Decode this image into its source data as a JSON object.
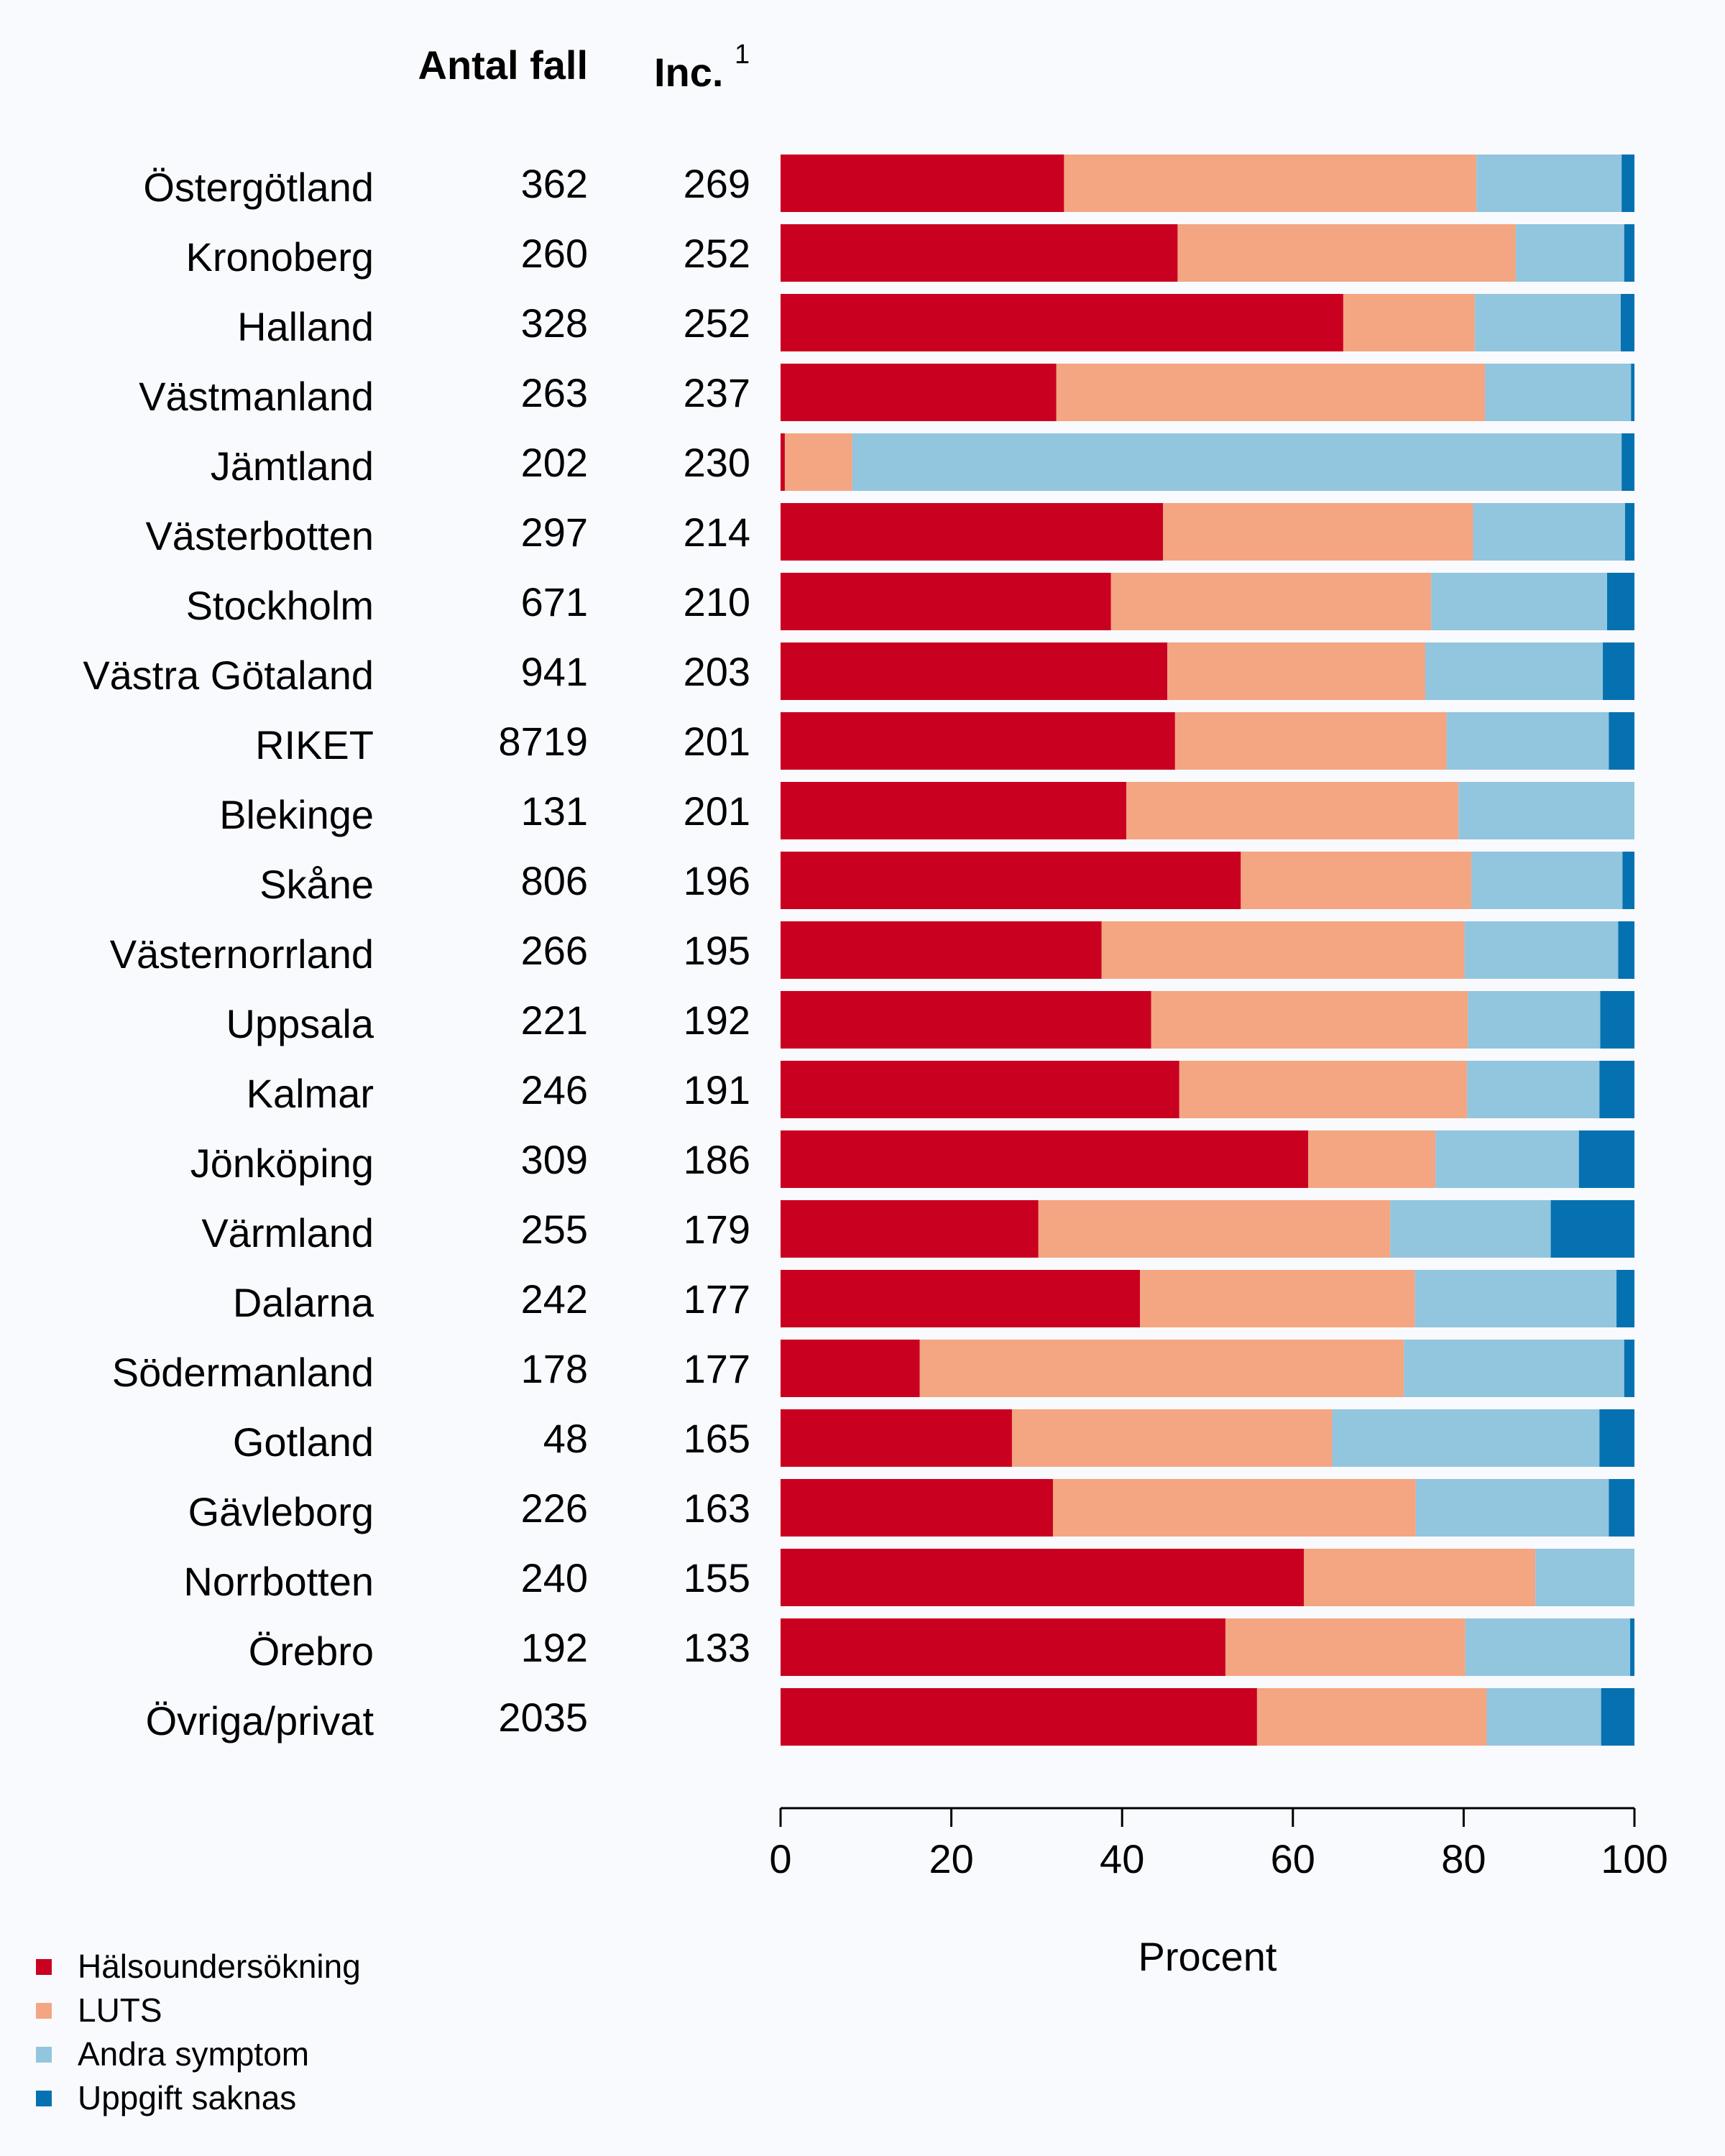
{
  "chart_data": {
    "type": "bar",
    "orientation": "horizontal",
    "stacked": true,
    "headers": {
      "count": "Antal fall",
      "incidence": "Inc.",
      "incidence_sup": "1"
    },
    "xlabel": "Procent",
    "xlim": [
      0,
      100
    ],
    "xticks": [
      0,
      20,
      40,
      60,
      80,
      100
    ],
    "grid": false,
    "legend_position": "bottom-left",
    "series": [
      {
        "name": "Hälsoundersökning",
        "color": "#ca0020"
      },
      {
        "name": "LUTS",
        "color": "#f4a582"
      },
      {
        "name": "Andra symptom",
        "color": "#92c5de"
      },
      {
        "name": "Uppgift saknas",
        "color": "#0571b0"
      }
    ],
    "rows": [
      {
        "region": "Östergötland",
        "count": "362",
        "inc": "269",
        "values": [
          33.2,
          48.3,
          17.0,
          1.5
        ]
      },
      {
        "region": "Kronoberg",
        "count": "260",
        "inc": "252",
        "values": [
          46.5,
          39.6,
          12.7,
          1.2
        ]
      },
      {
        "region": "Halland",
        "count": "328",
        "inc": "252",
        "values": [
          65.9,
          15.4,
          17.1,
          1.6
        ]
      },
      {
        "region": "Västmanland",
        "count": "263",
        "inc": "237",
        "values": [
          32.3,
          50.2,
          17.1,
          0.4
        ]
      },
      {
        "region": "Jämtland",
        "count": "202",
        "inc": "230",
        "values": [
          0.5,
          7.9,
          90.1,
          1.5
        ]
      },
      {
        "region": "Västerbotten",
        "count": "297",
        "inc": "214",
        "values": [
          44.8,
          36.3,
          17.8,
          1.1
        ]
      },
      {
        "region": "Stockholm",
        "count": "671",
        "inc": "210",
        "values": [
          38.7,
          37.5,
          20.6,
          3.2
        ]
      },
      {
        "region": "Västra Götaland",
        "count": "941",
        "inc": "203",
        "values": [
          45.3,
          30.2,
          20.8,
          3.7
        ]
      },
      {
        "region": "RIKET",
        "count": "8719",
        "inc": "201",
        "values": [
          46.2,
          31.8,
          19.0,
          3.0
        ]
      },
      {
        "region": "Blekinge",
        "count": "131",
        "inc": "201",
        "values": [
          40.5,
          38.9,
          20.6,
          0.0
        ]
      },
      {
        "region": "Skåne",
        "count": "806",
        "inc": "196",
        "values": [
          53.9,
          27.0,
          17.7,
          1.4
        ]
      },
      {
        "region": "Västernorrland",
        "count": "266",
        "inc": "195",
        "values": [
          37.6,
          42.5,
          18.0,
          1.9
        ]
      },
      {
        "region": "Uppsala",
        "count": "221",
        "inc": "192",
        "values": [
          43.4,
          37.1,
          15.5,
          4.0
        ]
      },
      {
        "region": "Kalmar",
        "count": "246",
        "inc": "191",
        "values": [
          46.7,
          33.7,
          15.5,
          4.1
        ]
      },
      {
        "region": "Jönköping",
        "count": "309",
        "inc": "186",
        "values": [
          61.8,
          14.9,
          16.8,
          6.5
        ]
      },
      {
        "region": "Värmland",
        "count": "255",
        "inc": "179",
        "values": [
          30.2,
          41.2,
          18.8,
          9.8
        ]
      },
      {
        "region": "Dalarna",
        "count": "242",
        "inc": "177",
        "values": [
          42.1,
          32.2,
          23.6,
          2.1
        ]
      },
      {
        "region": "Södermanland",
        "count": "178",
        "inc": "177",
        "values": [
          16.3,
          56.7,
          25.8,
          1.2
        ]
      },
      {
        "region": "Gotland",
        "count": "48",
        "inc": "165",
        "values": [
          27.1,
          37.5,
          31.3,
          4.1
        ]
      },
      {
        "region": "Gävleborg",
        "count": "226",
        "inc": "163",
        "values": [
          31.9,
          42.5,
          22.6,
          3.0
        ]
      },
      {
        "region": "Norrbotten",
        "count": "240",
        "inc": "155",
        "values": [
          61.3,
          27.1,
          11.6,
          0.0
        ]
      },
      {
        "region": "Örebro",
        "count": "192",
        "inc": "133",
        "values": [
          52.1,
          28.1,
          19.3,
          0.5
        ]
      },
      {
        "region": "Övriga/privat",
        "count": "2035",
        "inc": "",
        "values": [
          55.8,
          26.9,
          13.4,
          3.9
        ]
      }
    ]
  }
}
